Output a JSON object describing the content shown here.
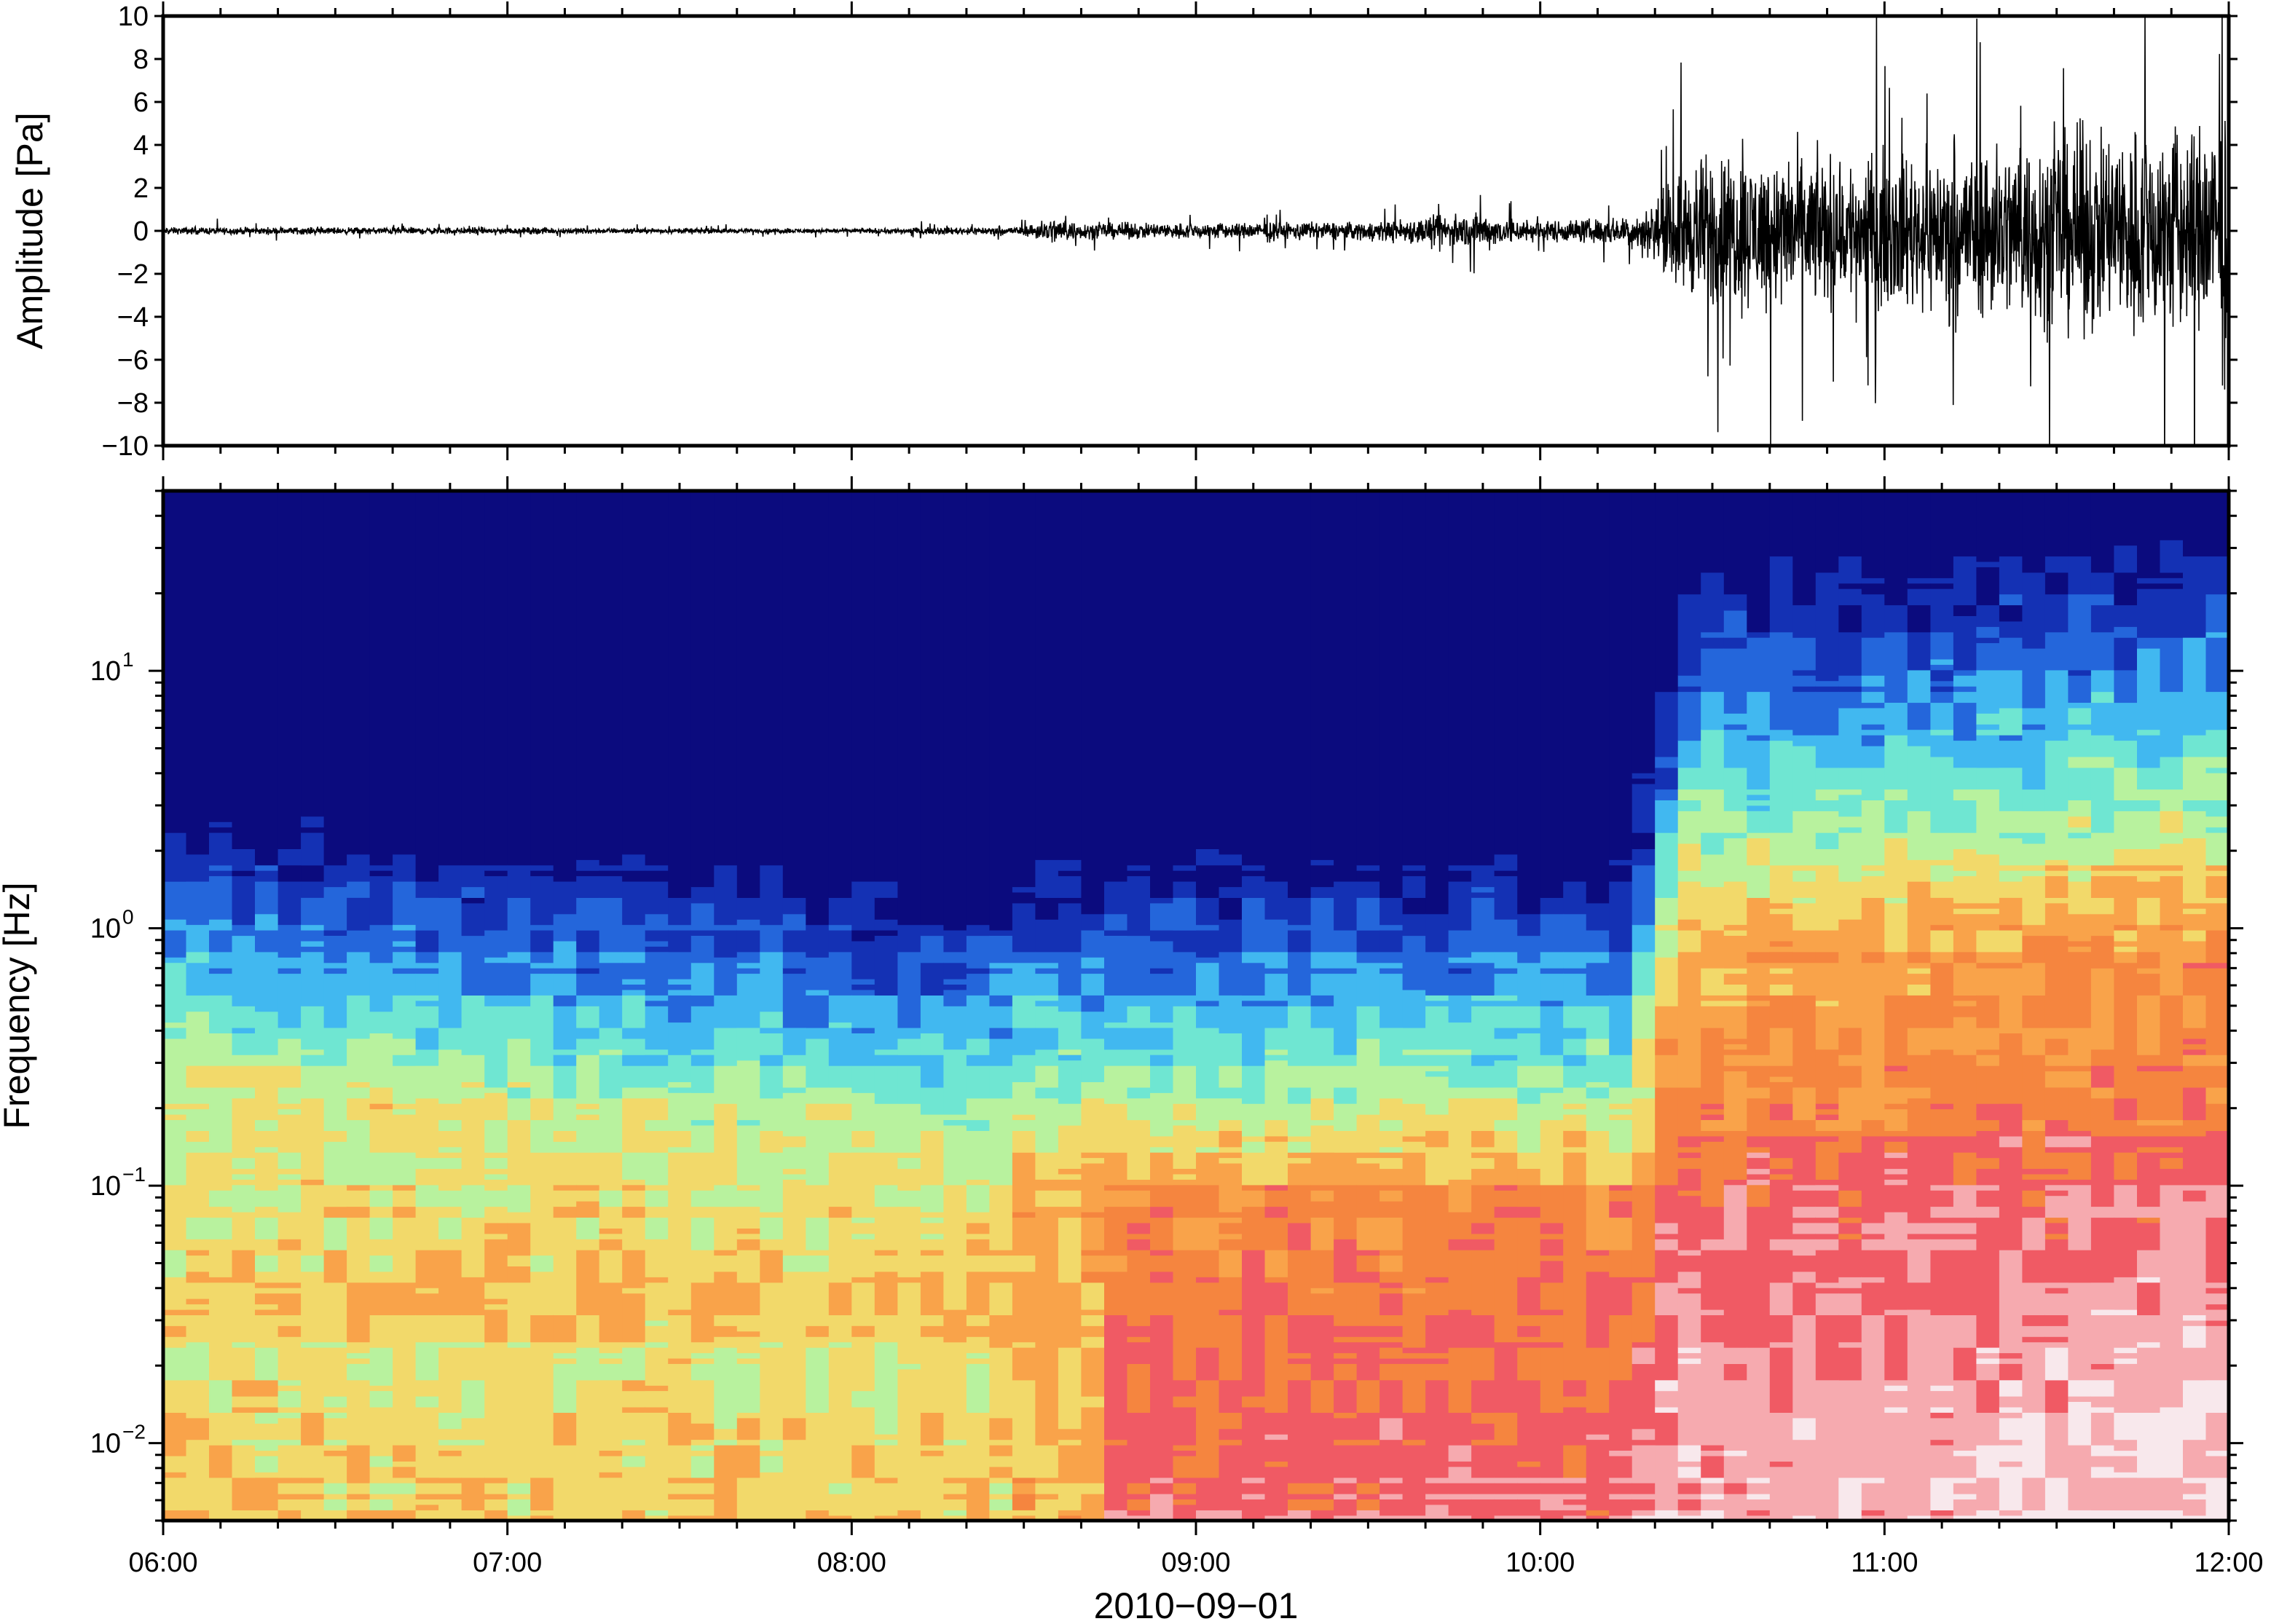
{
  "chart_data": [
    {
      "type": "line",
      "panel": "waveform",
      "ylabel": "Amplitude [Pa]",
      "ylim": [
        -10,
        10
      ],
      "y_ticks": [
        10,
        8,
        6,
        4,
        2,
        0,
        -2,
        -4,
        -6,
        -8,
        -10
      ],
      "y_tick_labels": [
        "10",
        "8",
        "6",
        "4",
        "2",
        "0",
        "−2",
        "−4",
        "−6",
        "−8",
        "−10"
      ],
      "xlim": [
        "2010-09-01 06:00",
        "2010-09-01 12:00"
      ],
      "line_color": "#000000",
      "series": [
        {
          "envelope_time": [
            "06:00",
            "06:30",
            "07:00",
            "07:30",
            "08:00",
            "08:30",
            "08:35",
            "08:40",
            "09:00",
            "09:30",
            "09:49",
            "10:00",
            "10:15",
            "10:20",
            "10:25",
            "10:30",
            "10:45",
            "11:00",
            "11:15",
            "11:30",
            "11:45",
            "12:00"
          ],
          "envelope_amplitude": [
            0.3,
            0.3,
            0.3,
            0.2,
            0.2,
            0.4,
            1.2,
            0.7,
            0.7,
            0.8,
            1.6,
            0.9,
            1.2,
            2.5,
            5.5,
            7.0,
            6.5,
            6.5,
            7.5,
            8.5,
            9.5,
            10
          ]
        }
      ]
    },
    {
      "type": "heatmap",
      "panel": "spectrogram",
      "ylabel": "Frequency [Hz]",
      "yscale": "log",
      "ylim": [
        0.005,
        50
      ],
      "y_ticks": [
        0.01,
        0.1,
        1,
        10
      ],
      "y_tick_labels": [
        {
          "base": "10",
          "exp": "−2"
        },
        {
          "base": "10",
          "exp": "−1"
        },
        {
          "base": "10",
          "exp": "0"
        },
        {
          "base": "10",
          "exp": "1"
        }
      ],
      "xlabel": "2010−09−01",
      "x_ticks": [
        "06:00",
        "07:00",
        "08:00",
        "09:00",
        "10:00",
        "11:00",
        "12:00"
      ],
      "colormap": [
        "#f8e8ec",
        "#f6aaaf",
        "#f05a64",
        "#f5853f",
        "#f9a34a",
        "#f2d96a",
        "#b8f29e",
        "#6fe6d2",
        "#41b8f0",
        "#2466db",
        "#1431b4",
        "#0b0b7e"
      ],
      "description_of_power": "low frequencies loud (red/orange), high frequencies quiet (dark blue); sharp broadband increase at ~10:25"
    }
  ]
}
